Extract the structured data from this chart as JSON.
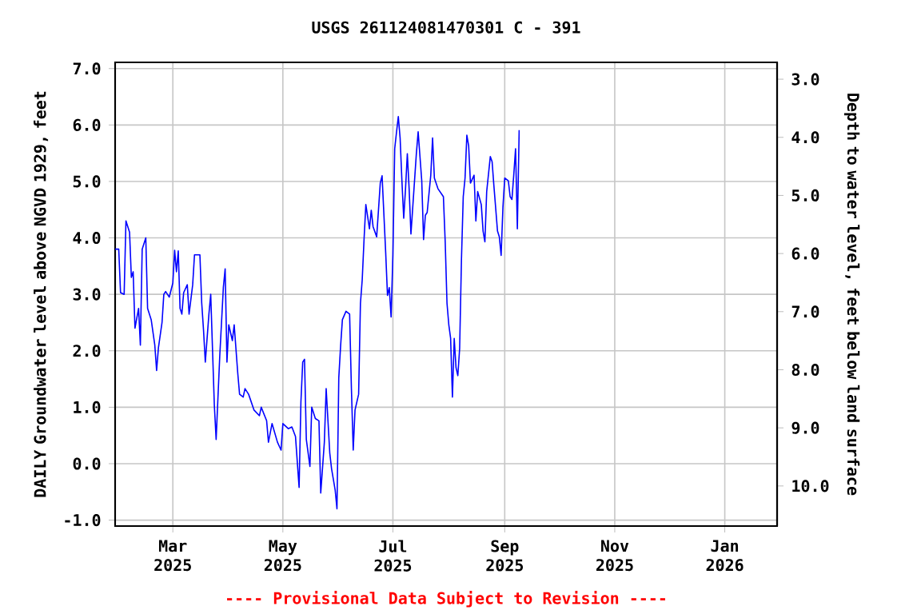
{
  "chart_data": {
    "type": "line",
    "title": "USGS 261124081470301 C  - 391",
    "ylabel": "DAILY Groundwater level above NGVD 1929, feet",
    "y2label": "Depth to water level, feet below land surface",
    "annotations": [
      "---- Provisional Data Subject to Revision ----"
    ],
    "xlim": [
      "2025-01-28",
      "2026-01-30"
    ],
    "xticks": [
      {
        "value": "2025-03-01",
        "label": "Mar 2025"
      },
      {
        "value": "2025-05-01",
        "label": "May 2025"
      },
      {
        "value": "2025-07-01",
        "label": "Jul 2025"
      },
      {
        "value": "2025-09-01",
        "label": "Sep 2025"
      },
      {
        "value": "2025-11-01",
        "label": "Nov 2025"
      },
      {
        "value": "2026-01-01",
        "label": "Jan 2026"
      }
    ],
    "ylim": [
      -1.105,
      7.11
    ],
    "yticks": [
      {
        "value": -1,
        "label": "-1.0"
      },
      {
        "value": 0,
        "label": "0.0"
      },
      {
        "value": 1,
        "label": "1.0"
      },
      {
        "value": 2,
        "label": "2.0"
      },
      {
        "value": 3,
        "label": "3.0"
      },
      {
        "value": 4,
        "label": "4.0"
      },
      {
        "value": 5,
        "label": "5.0"
      },
      {
        "value": 6,
        "label": "6.0"
      },
      {
        "value": 7,
        "label": "7.0"
      }
    ],
    "y2lim": [
      10.69,
      2.71
    ],
    "y2ticks": [
      {
        "value": 3,
        "label": "3.0"
      },
      {
        "value": 4,
        "label": "4.0"
      },
      {
        "value": 5,
        "label": "5.0"
      },
      {
        "value": 6,
        "label": "6.0"
      },
      {
        "value": 7,
        "label": "7.0"
      },
      {
        "value": 8,
        "label": "8.0"
      },
      {
        "value": 9,
        "label": "9.0"
      },
      {
        "value": 10,
        "label": "10.0"
      }
    ],
    "grid": true,
    "series": [
      {
        "color": "#0000ff",
        "x": [
          "2025-01-28",
          "2025-01-30",
          "2025-01-31",
          "2025-02-02",
          "2025-02-03",
          "2025-02-05",
          "2025-02-06",
          "2025-02-07",
          "2025-02-08",
          "2025-02-10",
          "2025-02-11",
          "2025-02-12",
          "2025-02-14",
          "2025-02-15",
          "2025-02-17",
          "2025-02-19",
          "2025-02-20",
          "2025-02-21",
          "2025-02-23",
          "2025-02-24",
          "2025-02-25",
          "2025-02-27",
          "2025-03-01",
          "2025-03-02",
          "2025-03-03",
          "2025-03-04",
          "2025-03-05",
          "2025-03-06",
          "2025-03-07",
          "2025-03-09",
          "2025-03-10",
          "2025-03-12",
          "2025-03-13",
          "2025-03-16",
          "2025-03-17",
          "2025-03-18",
          "2025-03-19",
          "2025-03-21",
          "2025-03-22",
          "2025-03-24",
          "2025-03-25",
          "2025-03-27",
          "2025-03-29",
          "2025-03-30",
          "2025-03-31",
          "2025-04-01",
          "2025-04-03",
          "2025-04-04",
          "2025-04-06",
          "2025-04-07",
          "2025-04-09",
          "2025-04-10",
          "2025-04-12",
          "2025-04-15",
          "2025-04-18",
          "2025-04-19",
          "2025-04-22",
          "2025-04-23",
          "2025-04-25",
          "2025-04-28",
          "2025-04-30",
          "2025-05-01",
          "2025-05-04",
          "2025-05-06",
          "2025-05-08",
          "2025-05-10",
          "2025-05-11",
          "2025-05-12",
          "2025-05-13",
          "2025-05-14",
          "2025-05-16",
          "2025-05-17",
          "2025-05-19",
          "2025-05-21",
          "2025-05-22",
          "2025-05-24",
          "2025-05-25",
          "2025-05-27",
          "2025-05-28",
          "2025-05-30",
          "2025-05-31",
          "2025-06-01",
          "2025-06-02",
          "2025-06-03",
          "2025-06-05",
          "2025-06-07",
          "2025-06-08",
          "2025-06-09",
          "2025-06-10",
          "2025-06-12",
          "2025-06-13",
          "2025-06-14",
          "2025-06-15",
          "2025-06-16",
          "2025-06-18",
          "2025-06-19",
          "2025-06-20",
          "2025-06-22",
          "2025-06-23",
          "2025-06-24",
          "2025-06-25",
          "2025-06-27",
          "2025-06-28",
          "2025-06-29",
          "2025-06-30",
          "2025-07-01",
          "2025-07-02",
          "2025-07-03",
          "2025-07-04",
          "2025-07-05",
          "2025-07-06",
          "2025-07-07",
          "2025-07-08",
          "2025-07-09",
          "2025-07-10",
          "2025-07-11",
          "2025-07-12",
          "2025-07-14",
          "2025-07-15",
          "2025-07-17",
          "2025-07-18",
          "2025-07-19",
          "2025-07-20",
          "2025-07-22",
          "2025-07-23",
          "2025-07-24",
          "2025-07-26",
          "2025-07-29",
          "2025-07-30",
          "2025-07-31",
          "2025-08-01",
          "2025-08-02",
          "2025-08-03",
          "2025-08-04",
          "2025-08-05",
          "2025-08-06",
          "2025-08-07",
          "2025-08-08",
          "2025-08-09",
          "2025-08-10",
          "2025-08-11",
          "2025-08-12",
          "2025-08-13",
          "2025-08-15",
          "2025-08-16",
          "2025-08-17",
          "2025-08-19",
          "2025-08-20",
          "2025-08-21",
          "2025-08-22",
          "2025-08-24",
          "2025-08-25",
          "2025-08-26",
          "2025-08-28",
          "2025-08-29",
          "2025-08-30",
          "2025-08-31",
          "2025-09-01",
          "2025-09-03",
          "2025-09-04",
          "2025-09-05",
          "2025-09-06",
          "2025-09-07",
          "2025-09-08",
          "2025-09-09"
        ],
        "values": [
          3.8,
          3.8,
          3.03,
          3.0,
          4.3,
          4.1,
          3.3,
          3.4,
          2.4,
          2.75,
          2.1,
          3.8,
          4.0,
          2.75,
          2.55,
          2.1,
          1.65,
          2.05,
          2.5,
          3.0,
          3.05,
          2.95,
          3.2,
          3.78,
          3.4,
          3.77,
          2.75,
          2.65,
          3.03,
          3.17,
          2.65,
          3.17,
          3.7,
          3.7,
          2.85,
          2.37,
          1.8,
          2.65,
          3.0,
          1.04,
          0.43,
          1.9,
          3.12,
          3.45,
          1.8,
          2.46,
          2.18,
          2.46,
          1.6,
          1.23,
          1.18,
          1.33,
          1.23,
          0.95,
          0.85,
          1.0,
          0.76,
          0.38,
          0.71,
          0.38,
          0.24,
          0.71,
          0.62,
          0.65,
          0.48,
          -0.42,
          1.09,
          1.8,
          1.85,
          0.43,
          -0.05,
          1.0,
          0.8,
          0.76,
          -0.52,
          0.38,
          1.33,
          0.19,
          -0.09,
          -0.47,
          -0.8,
          1.52,
          2.08,
          2.55,
          2.7,
          2.65,
          1.33,
          0.24,
          0.95,
          1.23,
          2.84,
          3.26,
          3.97,
          4.59,
          4.16,
          4.49,
          4.2,
          4.02,
          4.49,
          4.97,
          5.1,
          3.74,
          2.98,
          3.12,
          2.6,
          3.7,
          5.58,
          5.87,
          6.15,
          5.77,
          5.01,
          4.35,
          4.87,
          5.49,
          4.87,
          4.07,
          4.54,
          5.49,
          5.88,
          5.01,
          3.97,
          4.4,
          4.45,
          5.11,
          5.77,
          5.06,
          4.87,
          4.73,
          3.93,
          2.84,
          2.46,
          2.22,
          1.18,
          2.22,
          1.7,
          1.56,
          2.04,
          3.6,
          4.73,
          5.06,
          5.82,
          5.63,
          4.97,
          5.11,
          4.3,
          4.82,
          4.59,
          4.12,
          3.93,
          4.82,
          5.44,
          5.35,
          4.92,
          4.12,
          4.02,
          3.69,
          4.54,
          5.06,
          5.01,
          4.73,
          4.68,
          5.11,
          5.58,
          4.16,
          5.91
        ]
      }
    ]
  }
}
